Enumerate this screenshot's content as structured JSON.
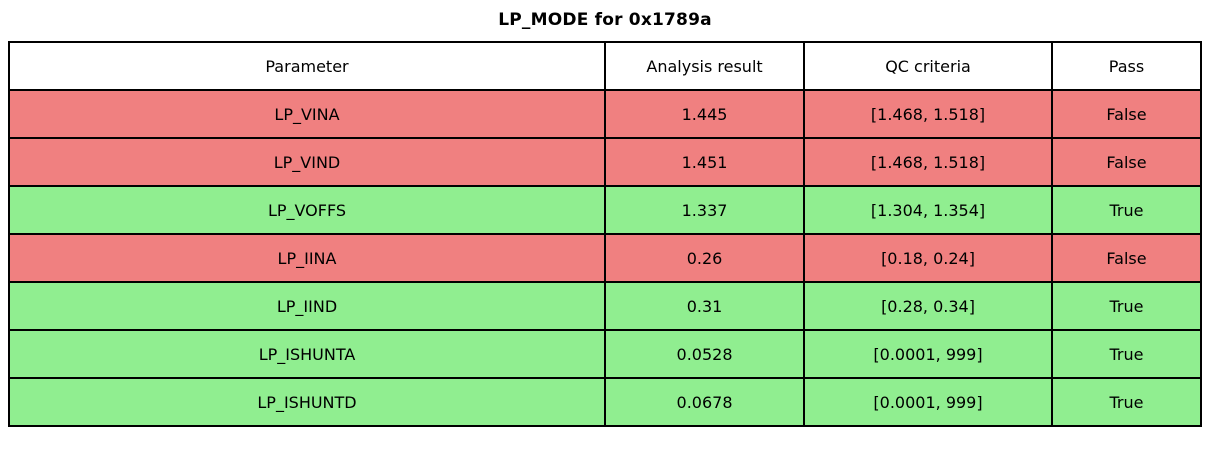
{
  "title": "LP_MODE for 0x1789a",
  "chart_data": {
    "type": "table",
    "title": "LP_MODE for 0x1789a",
    "columns": [
      "Parameter",
      "Analysis result",
      "QC criteria",
      "Pass"
    ],
    "rows": [
      {
        "parameter": "LP_VINA",
        "analysis_result": "1.445",
        "qc_criteria": "[1.468, 1.518]",
        "pass": "False",
        "status": "fail"
      },
      {
        "parameter": "LP_VIND",
        "analysis_result": "1.451",
        "qc_criteria": "[1.468, 1.518]",
        "pass": "False",
        "status": "fail"
      },
      {
        "parameter": "LP_VOFFS",
        "analysis_result": "1.337",
        "qc_criteria": "[1.304, 1.354]",
        "pass": "True",
        "status": "pass"
      },
      {
        "parameter": "LP_IINA",
        "analysis_result": "0.26",
        "qc_criteria": "[0.18, 0.24]",
        "pass": "False",
        "status": "fail"
      },
      {
        "parameter": "LP_IIND",
        "analysis_result": "0.31",
        "qc_criteria": "[0.28, 0.34]",
        "pass": "True",
        "status": "pass"
      },
      {
        "parameter": "LP_ISHUNTA",
        "analysis_result": "0.0528",
        "qc_criteria": "[0.0001, 999]",
        "pass": "True",
        "status": "pass"
      },
      {
        "parameter": "LP_ISHUNTD",
        "analysis_result": "0.0678",
        "qc_criteria": "[0.0001, 999]",
        "pass": "True",
        "status": "pass"
      }
    ],
    "legend": "row background indicates pass/fail status",
    "layout": {
      "grid": true,
      "header_row": true
    }
  },
  "colors": {
    "fail_row": "#f08080",
    "pass_row": "#90ee90",
    "header_bg": "#ffffff",
    "border": "#000000",
    "text": "#000000"
  }
}
